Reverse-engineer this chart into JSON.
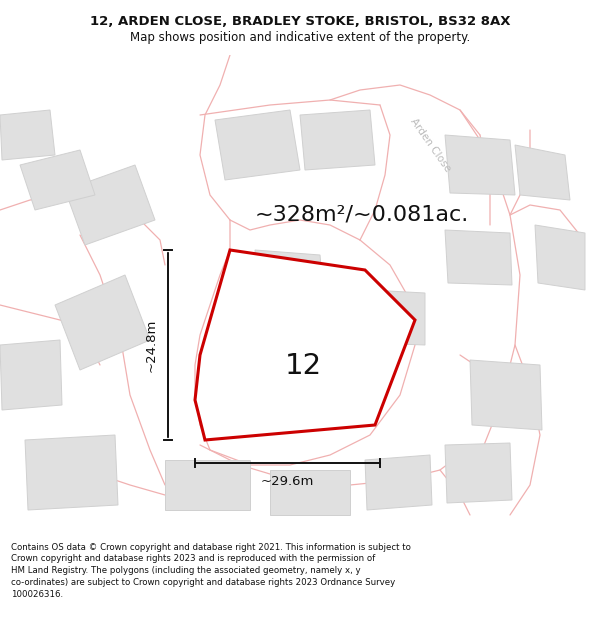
{
  "title_line1": "12, ARDEN CLOSE, BRADLEY STOKE, BRISTOL, BS32 8AX",
  "title_line2": "Map shows position and indicative extent of the property.",
  "area_text": "~328m²/~0.081ac.",
  "plot_number": "12",
  "dim_height": "~24.8m",
  "dim_width": "~29.6m",
  "footer_text": "Contains OS data © Crown copyright and database right 2021. This information is subject to Crown copyright and database rights 2023 and is reproduced with the permission of HM Land Registry. The polygons (including the associated geometry, namely x, y co-ordinates) are subject to Crown copyright and database rights 2023 Ordnance Survey 100026316.",
  "bg_color": "#f5f5f5",
  "plot_fill": "#ffffff",
  "plot_edge": "#cc0000",
  "neighbor_fill": "#e0e0e0",
  "neighbor_edge": "#d0d0d0",
  "road_color": "#f0b0b0",
  "dim_color": "#111111",
  "text_color": "#111111",
  "road_label_color": "#bbbbbb",
  "title_fontsize": 9.5,
  "subtitle_fontsize": 8.5,
  "area_fontsize": 16,
  "label_fontsize": 21,
  "dim_fontsize": 9.5,
  "footer_fontsize": 6.2
}
